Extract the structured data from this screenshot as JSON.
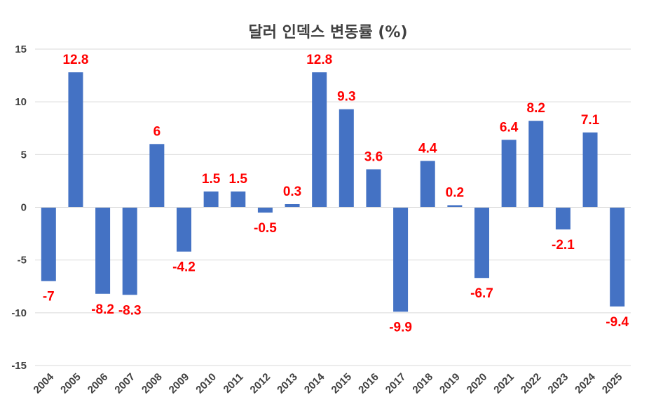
{
  "chart_data": {
    "type": "bar",
    "title": "달러 인덱스 변동률 (%)",
    "xlabel": "",
    "ylabel": "",
    "categories": [
      "2004",
      "2005",
      "2006",
      "2007",
      "2008",
      "2009",
      "2010",
      "2011",
      "2012",
      "2013",
      "2014",
      "2015",
      "2016",
      "2017",
      "2018",
      "2019",
      "2020",
      "2021",
      "2022",
      "2023",
      "2024",
      "2025"
    ],
    "values": [
      -7,
      12.8,
      -8.2,
      -8.3,
      6,
      -4.2,
      1.5,
      1.5,
      -0.5,
      0.3,
      12.8,
      9.3,
      3.6,
      -9.9,
      4.4,
      0.2,
      -6.7,
      6.4,
      8.2,
      -2.1,
      7.1,
      -9.4
    ],
    "data_labels": [
      "-7",
      "12.8",
      "-8.2",
      "-8.3",
      "6",
      "-4.2",
      "1.5",
      "1.5",
      "-0.5",
      "0.3",
      "12.8",
      "9.3",
      "3.6",
      "-9.9",
      "4.4",
      "0.2",
      "-6.7",
      "6.4",
      "8.2",
      "-2.1",
      "7.1",
      "-9.4"
    ],
    "ylim": [
      -15,
      15
    ],
    "yticks": [
      "15",
      "10",
      "5",
      "0",
      "-5",
      "-10",
      "-15"
    ],
    "grid": true,
    "colors": {
      "bar": "#4472c4",
      "label": "#ff0000",
      "grid": "#d9d9d9",
      "text": "#404040"
    }
  }
}
